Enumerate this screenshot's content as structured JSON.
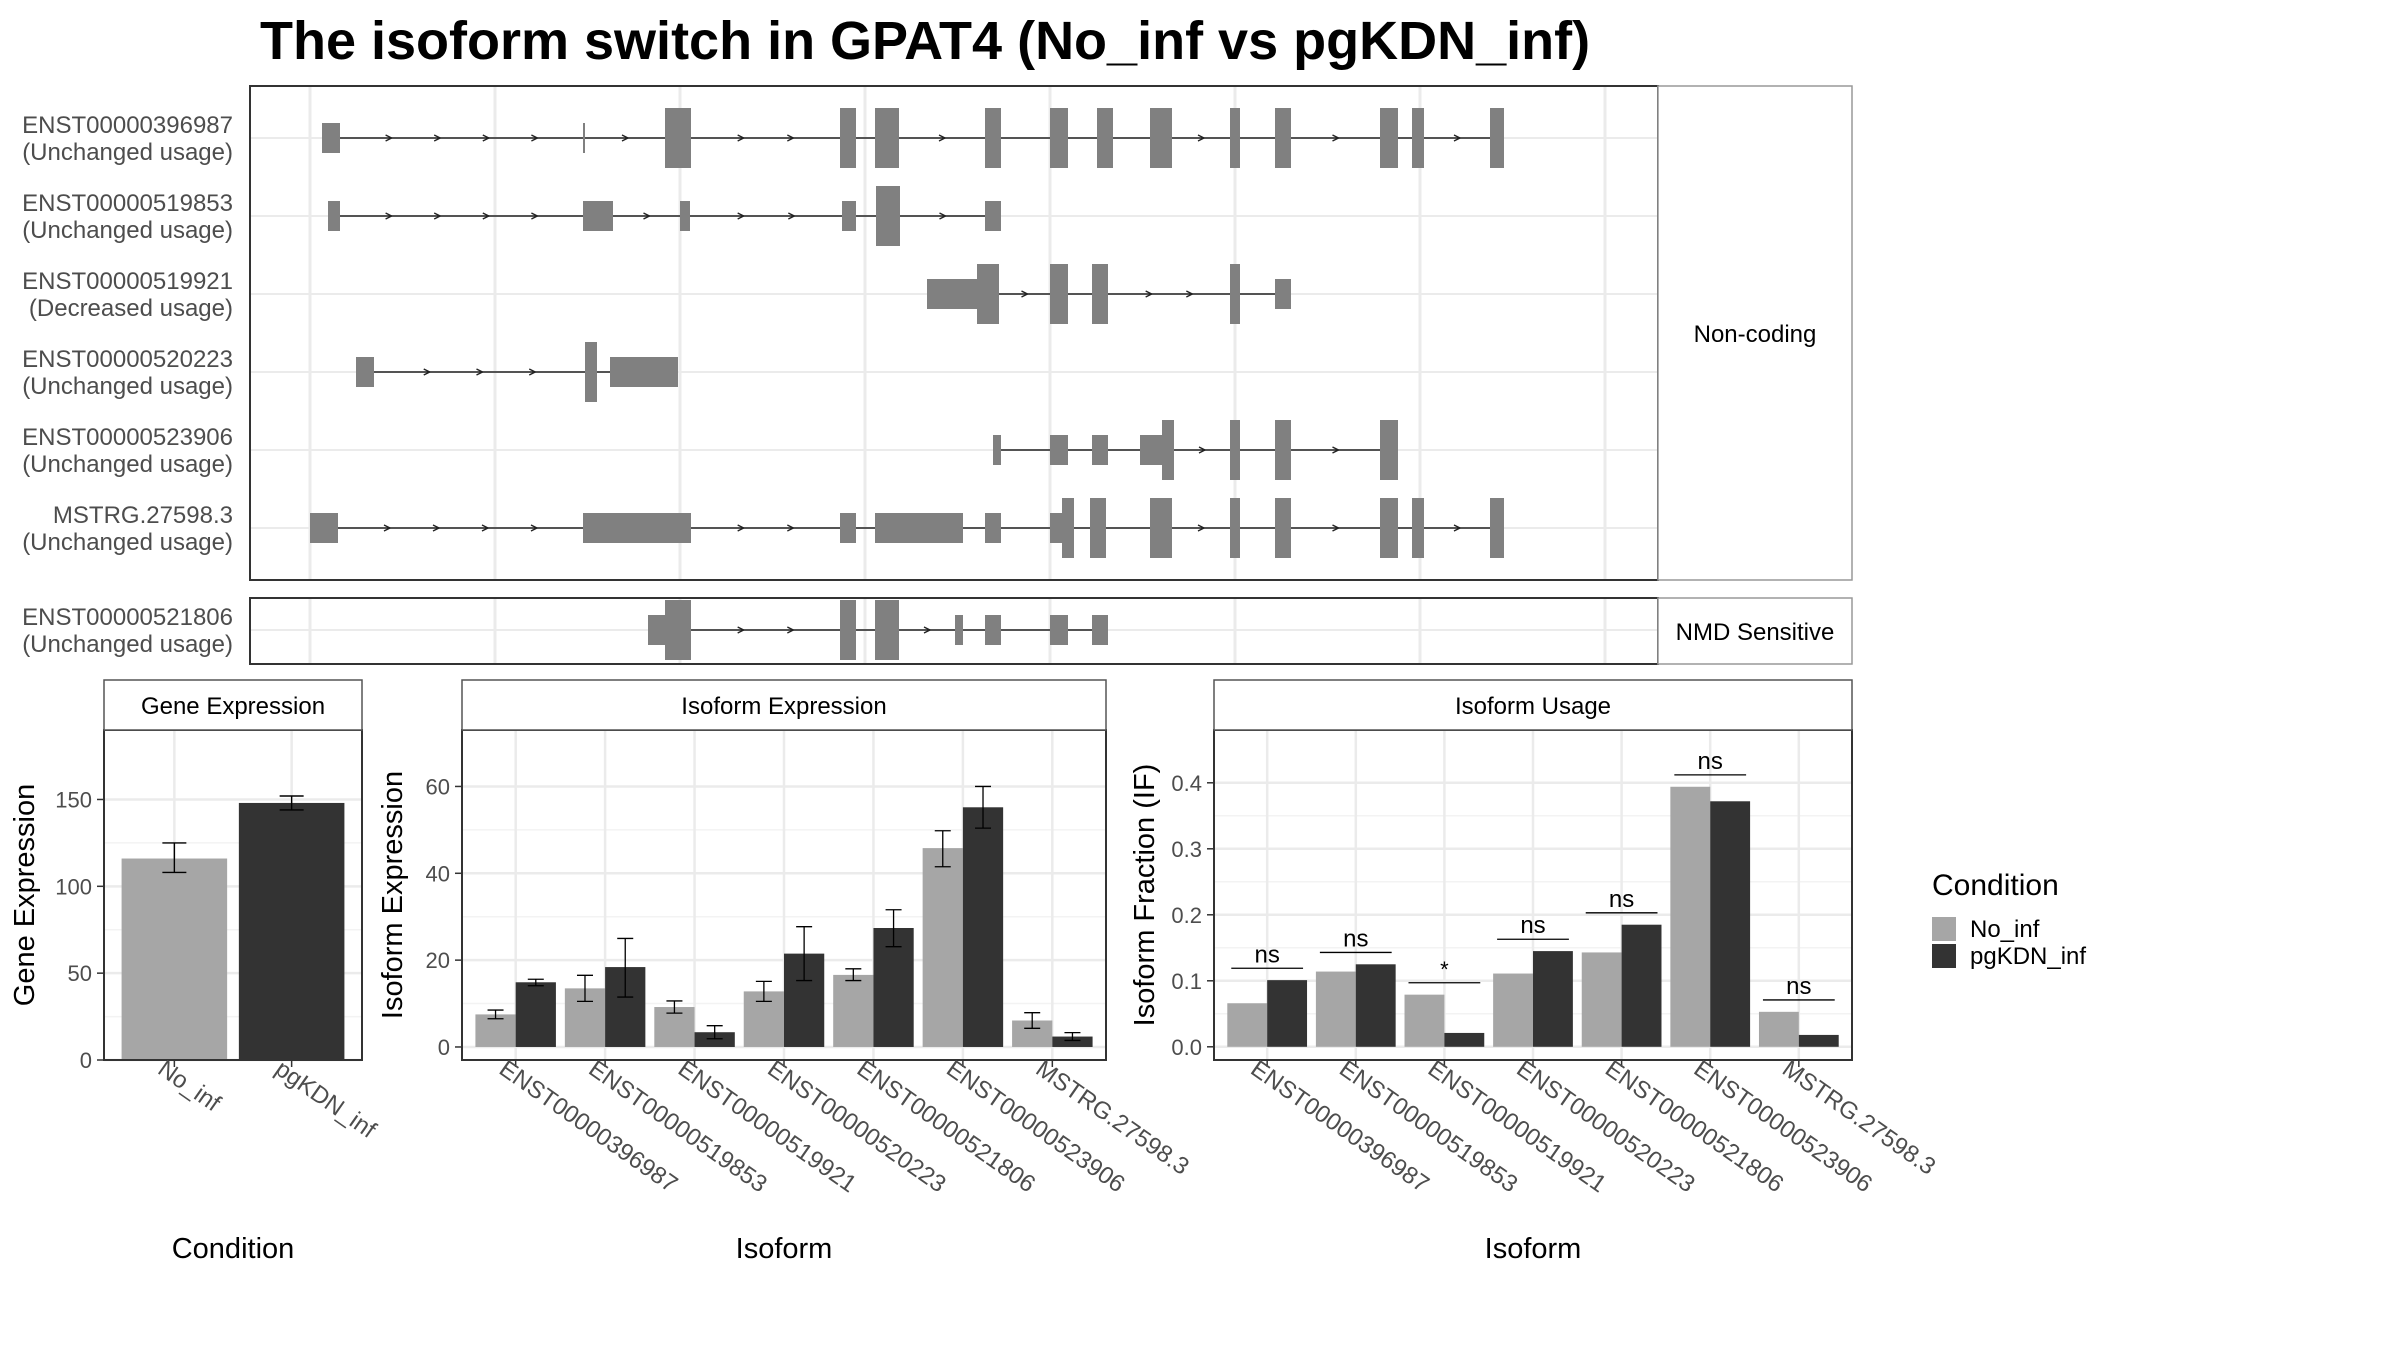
{
  "title": "The isoform switch in GPAT4 (No_inf vs pgKDN_inf)",
  "colors": {
    "no_inf": "#a6a6a6",
    "pgkdn_inf": "#333333",
    "exon": "#808080",
    "strip_border": "#555555",
    "grid": "#ebebeb"
  },
  "structure": {
    "groups": [
      {
        "label": "Non-coding",
        "transcripts": [
          {
            "id": "ENST00000396987",
            "usage": "(Unchanged usage)"
          },
          {
            "id": "ENST00000519853",
            "usage": "(Unchanged usage)"
          },
          {
            "id": "ENST00000519921",
            "usage": "(Decreased usage)"
          },
          {
            "id": "ENST00000520223",
            "usage": "(Unchanged usage)"
          },
          {
            "id": "ENST00000523906",
            "usage": "(Unchanged usage)"
          },
          {
            "id": "MSTRG.27598.3",
            "usage": "(Unchanged usage)"
          }
        ]
      },
      {
        "label": "NMD Sensitive",
        "transcripts": [
          {
            "id": "ENST00000521806",
            "usage": "(Unchanged usage)"
          }
        ]
      }
    ]
  },
  "legend": {
    "title": "Condition",
    "items": [
      "No_inf",
      "pgKDN_inf"
    ]
  },
  "chart_data": [
    {
      "type": "bar",
      "title": "Gene Expression",
      "xlabel": "Condition",
      "ylabel": "Gene Expression",
      "categories": [
        "No_inf",
        "pgKDN_inf"
      ],
      "values": [
        116,
        148
      ],
      "error_low": [
        108,
        144
      ],
      "error_high": [
        125,
        152
      ],
      "ylim": [
        0,
        190
      ],
      "yticks": [
        0,
        50,
        100,
        150
      ],
      "grid": true
    },
    {
      "type": "bar",
      "title": "Isoform Expression",
      "xlabel": "Isoform",
      "ylabel": "Isoform Expression",
      "categories": [
        "ENST00000396987",
        "ENST00000519853",
        "ENST00000519921",
        "ENST00000520223",
        "ENST00000521806",
        "ENST00000523906",
        "MSTRG.27598.3"
      ],
      "series": [
        {
          "name": "No_inf",
          "values": [
            7.5,
            13.5,
            9.2,
            12.8,
            16.6,
            45.8,
            6.1
          ],
          "error_low": [
            6.5,
            10.5,
            7.8,
            10.5,
            15.3,
            41.5,
            4.3
          ],
          "error_high": [
            8.5,
            16.5,
            10.6,
            15.1,
            18.0,
            49.8,
            7.9
          ]
        },
        {
          "name": "pgKDN_inf",
          "values": [
            14.9,
            18.4,
            3.4,
            21.5,
            27.4,
            55.2,
            2.4
          ],
          "error_low": [
            14.1,
            11.5,
            1.9,
            15.3,
            23.1,
            50.4,
            1.5
          ],
          "error_high": [
            15.6,
            25.0,
            4.9,
            27.7,
            31.6,
            60.0,
            3.3
          ]
        }
      ],
      "ylim": [
        -3,
        73
      ],
      "yticks": [
        0,
        20,
        40,
        60
      ],
      "grid": true
    },
    {
      "type": "bar",
      "title": "Isoform Usage",
      "xlabel": "Isoform",
      "ylabel": "Isoform Fraction (IF)",
      "categories": [
        "ENST00000396987",
        "ENST00000519853",
        "ENST00000519921",
        "ENST00000520223",
        "ENST00000521806",
        "ENST00000523906",
        "MSTRG.27598.3"
      ],
      "series": [
        {
          "name": "No_inf",
          "values": [
            0.066,
            0.114,
            0.079,
            0.111,
            0.143,
            0.394,
            0.053
          ]
        },
        {
          "name": "pgKDN_inf",
          "values": [
            0.101,
            0.125,
            0.021,
            0.145,
            0.185,
            0.372,
            0.018
          ]
        }
      ],
      "annotations": [
        "ns",
        "ns",
        "*",
        "ns",
        "ns",
        "ns",
        "ns"
      ],
      "ylim": [
        -0.02,
        0.48
      ],
      "yticks": [
        0.0,
        0.1,
        0.2,
        0.3,
        0.4
      ],
      "grid": true
    }
  ]
}
